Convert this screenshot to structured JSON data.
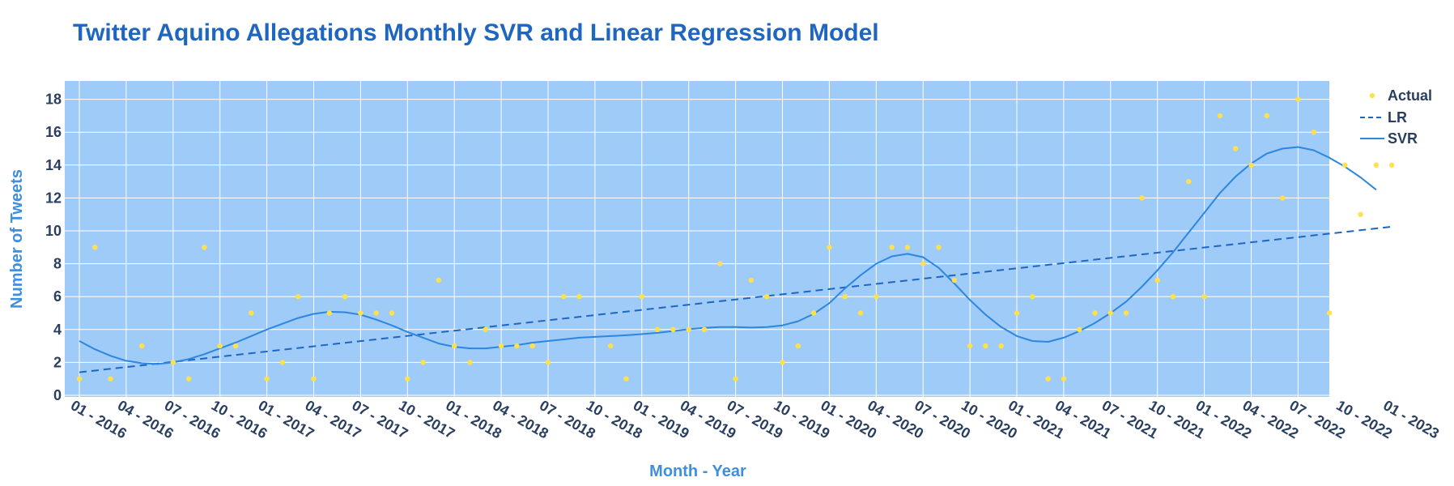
{
  "chart_data": {
    "type": "scatter",
    "title": "Twitter Aquino Allegations Monthly SVR and Linear Regression Model",
    "xlabel": "Month - Year",
    "ylabel": "Number of Tweets",
    "ylim": [
      0,
      19
    ],
    "yticks": [
      0,
      2,
      4,
      6,
      8,
      10,
      12,
      14,
      16,
      18
    ],
    "xlim": [
      0,
      85
    ],
    "xticks": [
      {
        "x": 0,
        "label": "01 - 2016"
      },
      {
        "x": 3,
        "label": "04 - 2016"
      },
      {
        "x": 6,
        "label": "07 - 2016"
      },
      {
        "x": 9,
        "label": "10 - 2016"
      },
      {
        "x": 12,
        "label": "01 - 2017"
      },
      {
        "x": 15,
        "label": "04 - 2017"
      },
      {
        "x": 18,
        "label": "07 - 2017"
      },
      {
        "x": 21,
        "label": "10 - 2017"
      },
      {
        "x": 24,
        "label": "01 - 2018"
      },
      {
        "x": 27,
        "label": "04 - 2018"
      },
      {
        "x": 30,
        "label": "07 - 2018"
      },
      {
        "x": 33,
        "label": "10 - 2018"
      },
      {
        "x": 36,
        "label": "01 - 2019"
      },
      {
        "x": 39,
        "label": "04 - 2019"
      },
      {
        "x": 42,
        "label": "07 - 2019"
      },
      {
        "x": 45,
        "label": "10 - 2019"
      },
      {
        "x": 48,
        "label": "01 - 2020"
      },
      {
        "x": 51,
        "label": "04 - 2020"
      },
      {
        "x": 54,
        "label": "07 - 2020"
      },
      {
        "x": 57,
        "label": "10 - 2020"
      },
      {
        "x": 60,
        "label": "01 - 2021"
      },
      {
        "x": 63,
        "label": "04 - 2021"
      },
      {
        "x": 66,
        "label": "07 - 2021"
      },
      {
        "x": 69,
        "label": "10 - 2021"
      },
      {
        "x": 72,
        "label": "01 - 2022"
      },
      {
        "x": 75,
        "label": "04 - 2022"
      },
      {
        "x": 78,
        "label": "07 - 2022"
      },
      {
        "x": 81,
        "label": "10 - 2022"
      },
      {
        "x": 84,
        "label": "01 - 2023"
      }
    ],
    "grid": true,
    "legend_position": "top-right",
    "series": [
      {
        "name": "Actual",
        "mode": "markers",
        "color": "#ffe14d",
        "points": [
          [
            0,
            1
          ],
          [
            1,
            9
          ],
          [
            2,
            1
          ],
          [
            4,
            3
          ],
          [
            6,
            2
          ],
          [
            7,
            1
          ],
          [
            8,
            9
          ],
          [
            9,
            3
          ],
          [
            10,
            3
          ],
          [
            11,
            5
          ],
          [
            12,
            1
          ],
          [
            13,
            2
          ],
          [
            14,
            6
          ],
          [
            15,
            1
          ],
          [
            16,
            5
          ],
          [
            17,
            6
          ],
          [
            18,
            5
          ],
          [
            19,
            5
          ],
          [
            20,
            5
          ],
          [
            21,
            1
          ],
          [
            22,
            2
          ],
          [
            23,
            7
          ],
          [
            24,
            3
          ],
          [
            25,
            2
          ],
          [
            26,
            4
          ],
          [
            27,
            3
          ],
          [
            28,
            3
          ],
          [
            29,
            3
          ],
          [
            30,
            2
          ],
          [
            31,
            6
          ],
          [
            32,
            6
          ],
          [
            34,
            3
          ],
          [
            35,
            1
          ],
          [
            36,
            6
          ],
          [
            37,
            4
          ],
          [
            38,
            4
          ],
          [
            39,
            4
          ],
          [
            40,
            4
          ],
          [
            41,
            8
          ],
          [
            42,
            1
          ],
          [
            43,
            7
          ],
          [
            44,
            6
          ],
          [
            45,
            2
          ],
          [
            46,
            3
          ],
          [
            47,
            5
          ],
          [
            48,
            9
          ],
          [
            49,
            6
          ],
          [
            50,
            5
          ],
          [
            51,
            6
          ],
          [
            52,
            9
          ],
          [
            53,
            9
          ],
          [
            54,
            8
          ],
          [
            55,
            9
          ],
          [
            56,
            7
          ],
          [
            57,
            3
          ],
          [
            58,
            3
          ],
          [
            59,
            3
          ],
          [
            60,
            5
          ],
          [
            61,
            6
          ],
          [
            62,
            1
          ],
          [
            63,
            1
          ],
          [
            64,
            4
          ],
          [
            65,
            5
          ],
          [
            66,
            5
          ],
          [
            67,
            5
          ],
          [
            68,
            12
          ],
          [
            69,
            7
          ],
          [
            70,
            6
          ],
          [
            71,
            13
          ],
          [
            72,
            6
          ],
          [
            73,
            17
          ],
          [
            74,
            15
          ],
          [
            75,
            14
          ],
          [
            76,
            17
          ],
          [
            77,
            12
          ],
          [
            78,
            18
          ],
          [
            79,
            16
          ],
          [
            80,
            5
          ],
          [
            81,
            14
          ],
          [
            82,
            11
          ],
          [
            83,
            14
          ],
          [
            84,
            14
          ]
        ]
      },
      {
        "name": "LR",
        "mode": "dashed-line",
        "color": "#1f66c1",
        "points": [
          [
            0,
            1.4
          ],
          [
            84,
            10.25
          ]
        ]
      },
      {
        "name": "SVR",
        "mode": "line",
        "color": "#2e86de",
        "points": [
          [
            0,
            3.3
          ],
          [
            1,
            2.8
          ],
          [
            2,
            2.4
          ],
          [
            3,
            2.1
          ],
          [
            4,
            1.95
          ],
          [
            5,
            1.9
          ],
          [
            6,
            2.0
          ],
          [
            7,
            2.2
          ],
          [
            8,
            2.5
          ],
          [
            9,
            2.85
          ],
          [
            10,
            3.2
          ],
          [
            11,
            3.6
          ],
          [
            12,
            4.0
          ],
          [
            13,
            4.35
          ],
          [
            14,
            4.7
          ],
          [
            15,
            4.95
          ],
          [
            16,
            5.08
          ],
          [
            17,
            5.05
          ],
          [
            18,
            4.9
          ],
          [
            19,
            4.6
          ],
          [
            20,
            4.25
          ],
          [
            21,
            3.85
          ],
          [
            22,
            3.5
          ],
          [
            23,
            3.15
          ],
          [
            24,
            2.95
          ],
          [
            25,
            2.85
          ],
          [
            26,
            2.85
          ],
          [
            27,
            2.95
          ],
          [
            28,
            3.05
          ],
          [
            29,
            3.2
          ],
          [
            30,
            3.3
          ],
          [
            31,
            3.4
          ],
          [
            32,
            3.5
          ],
          [
            33,
            3.55
          ],
          [
            34,
            3.6
          ],
          [
            35,
            3.65
          ],
          [
            36,
            3.72
          ],
          [
            37,
            3.8
          ],
          [
            38,
            3.9
          ],
          [
            39,
            4.02
          ],
          [
            40,
            4.1
          ],
          [
            41,
            4.15
          ],
          [
            42,
            4.15
          ],
          [
            43,
            4.12
          ],
          [
            44,
            4.15
          ],
          [
            45,
            4.25
          ],
          [
            46,
            4.5
          ],
          [
            47,
            4.95
          ],
          [
            48,
            5.6
          ],
          [
            49,
            6.5
          ],
          [
            50,
            7.3
          ],
          [
            51,
            8.0
          ],
          [
            52,
            8.45
          ],
          [
            53,
            8.6
          ],
          [
            54,
            8.4
          ],
          [
            55,
            7.75
          ],
          [
            56,
            6.8
          ],
          [
            57,
            5.8
          ],
          [
            58,
            4.9
          ],
          [
            59,
            4.15
          ],
          [
            60,
            3.6
          ],
          [
            61,
            3.3
          ],
          [
            62,
            3.25
          ],
          [
            63,
            3.5
          ],
          [
            64,
            3.9
          ],
          [
            65,
            4.4
          ],
          [
            66,
            5.0
          ],
          [
            67,
            5.7
          ],
          [
            68,
            6.6
          ],
          [
            69,
            7.6
          ],
          [
            70,
            8.7
          ],
          [
            71,
            9.9
          ],
          [
            72,
            11.1
          ],
          [
            73,
            12.3
          ],
          [
            74,
            13.3
          ],
          [
            75,
            14.1
          ],
          [
            76,
            14.7
          ],
          [
            77,
            15.0
          ],
          [
            78,
            15.1
          ],
          [
            79,
            14.9
          ],
          [
            80,
            14.45
          ],
          [
            81,
            13.9
          ],
          [
            82,
            13.25
          ],
          [
            83,
            12.5
          ]
        ]
      }
    ]
  },
  "colors": {
    "plot_background": "#9ecbf7",
    "grid": "#ffffff",
    "title": "#1f66c1",
    "axis_title": "#3e8fe0",
    "tick_text": "#2a3f5f"
  }
}
